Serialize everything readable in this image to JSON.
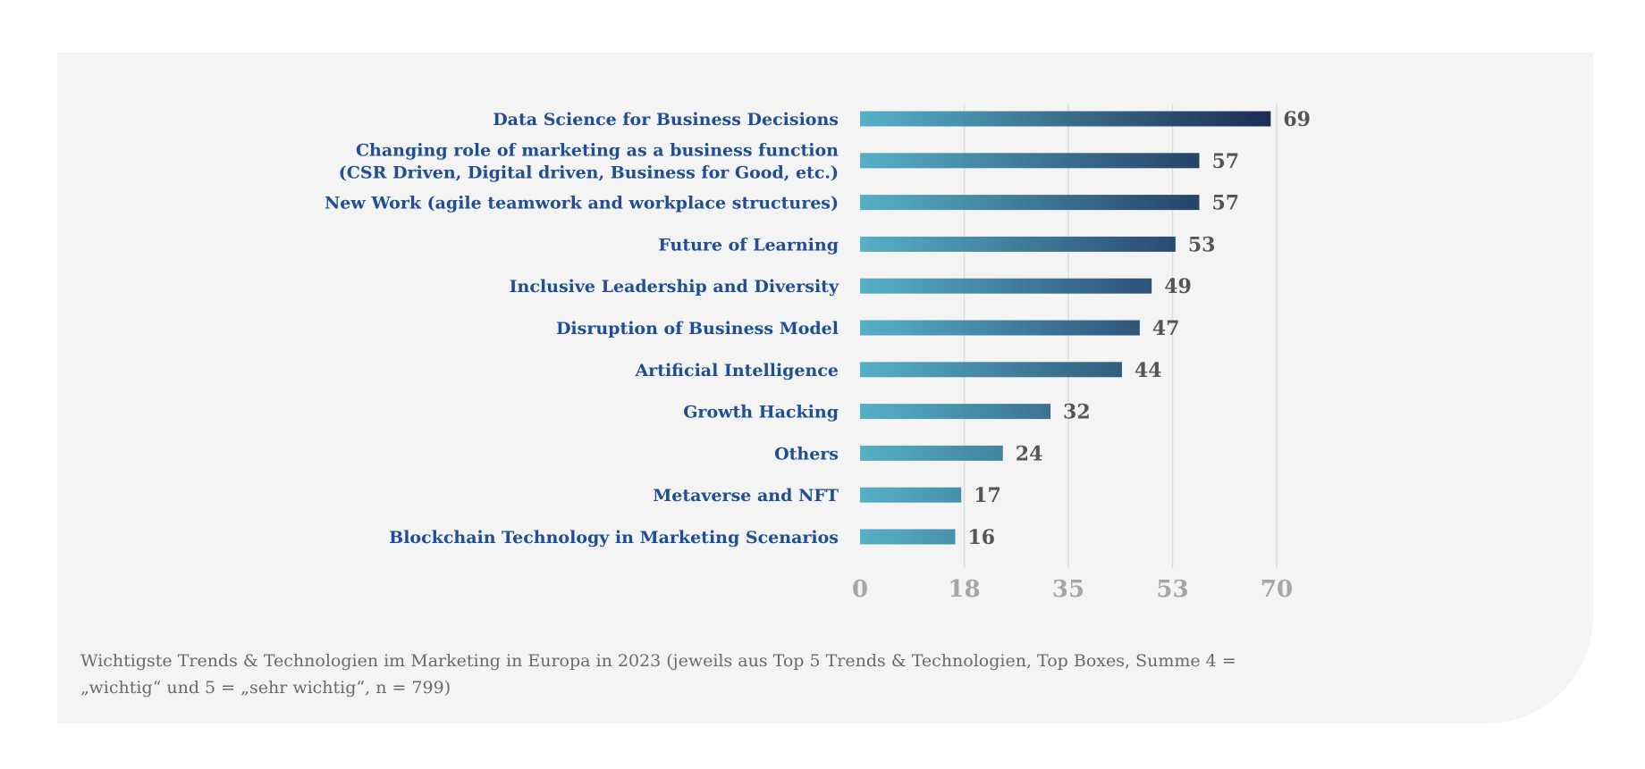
{
  "chart_data": {
    "type": "bar",
    "orientation": "horizontal",
    "categories": [
      [
        "Data Science for Business Decisions"
      ],
      [
        "Changing role of marketing as a business function",
        "(CSR Driven, Digital driven, Business for Good, etc.)"
      ],
      [
        "New Work (agile teamwork and workplace structures)"
      ],
      [
        "Future of Learning"
      ],
      [
        "Inclusive Leadership and Diversity"
      ],
      [
        "Disruption of Business Model"
      ],
      [
        "Artificial Intelligence"
      ],
      [
        "Growth Hacking"
      ],
      [
        "Others"
      ],
      [
        "Metaverse and NFT"
      ],
      [
        "Blockchain Technology in Marketing Scenarios"
      ]
    ],
    "values": [
      69,
      57,
      57,
      53,
      49,
      47,
      44,
      32,
      24,
      17,
      16
    ],
    "xlim": [
      0,
      70
    ],
    "xticks": [
      "0",
      "18",
      "35",
      "53",
      "70"
    ],
    "xtick_values": [
      0,
      17.5,
      35,
      52.5,
      70
    ],
    "grid": true,
    "title": "",
    "xlabel": "",
    "ylabel": ""
  },
  "colors": {
    "category_text": "#1f4e96",
    "value_text": "#555555",
    "tick_text": "#a6a6a6",
    "gridline": "#dcdcdc",
    "bar_gradient_start": "#56b0c6",
    "bar_gradient_end": "#1c2a55"
  },
  "caption": "Wichtigste Trends & Technologien im Marketing in Europa in 2023 (jeweils aus Top 5 Trends & Technologien, Top Boxes, Summe 4 = „wichtig“ und 5 = „sehr wichtig“, n = 799)"
}
